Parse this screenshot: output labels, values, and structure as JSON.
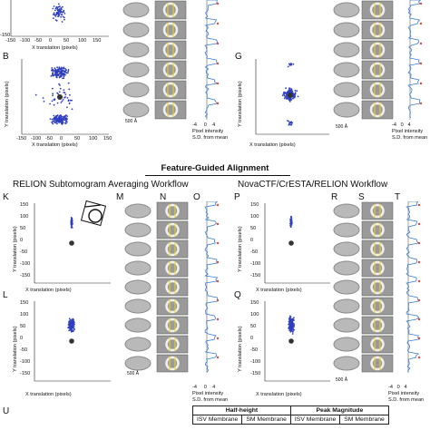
{
  "section_title": "Feature-Guided Alignment",
  "top_panels": {
    "B_letter": "B",
    "G_letter": "G",
    "xlabel": "X translation (pixels)",
    "ylabel": "Y translation (pixels)",
    "x_ticks": [
      "-150",
      "-100",
      "-50",
      "0",
      "50",
      "100",
      "150"
    ],
    "y_ticks": [
      "100",
      "50",
      "0",
      "-50",
      "-100",
      "-150"
    ],
    "top_y_tick": "-150",
    "scalebar_left": "500 Å",
    "scalebar_right": "500 Å",
    "intensity_ticks": [
      "-4",
      "0",
      "4"
    ],
    "intensity_label_1": "Pixel intensity",
    "intensity_label_2": "S.D. from mean",
    "intensity_label_2_right": "S.D. from mean"
  },
  "workflows": {
    "left_title": "RELION Subtomogram Averaging Workflow",
    "right_title": "NovaCTF/CrESTA/RELION Workflow"
  },
  "bottom_letters": {
    "K": "K",
    "L": "L",
    "M": "M",
    "N": "N",
    "O": "O",
    "P": "P",
    "Q": "Q",
    "R": "R",
    "S": "S",
    "T": "T",
    "U": "U"
  },
  "bottom_panels": {
    "xlabel": "X translation (pixels)",
    "ylabel": "Y translation (pixels)",
    "x_ticks": [
      "-150",
      "-100",
      "-50",
      "0",
      "50",
      "100",
      "150"
    ],
    "y_ticks": [
      "150",
      "100",
      "50",
      "0",
      "-50",
      "-100",
      "-150"
    ],
    "scalebar_left": "500 Å",
    "scalebar_right": "500 Å",
    "intensity_ticks": [
      "-4",
      "0",
      "4"
    ],
    "intensity_label_1": "Pixel intensity",
    "intensity_label_2": "S.D. from mean"
  },
  "table": {
    "group1": "Half-height",
    "group2": "Peak Magnitude",
    "cols": [
      "ISV Membrane",
      "SM Membrane",
      "ISV Membrane",
      "SM Membrane"
    ]
  },
  "colors": {
    "scatter": "#2f3fbf",
    "trace": "#3b7fd1",
    "marker_red": "#e0453a",
    "guide_yellow": "#f2d31b"
  }
}
